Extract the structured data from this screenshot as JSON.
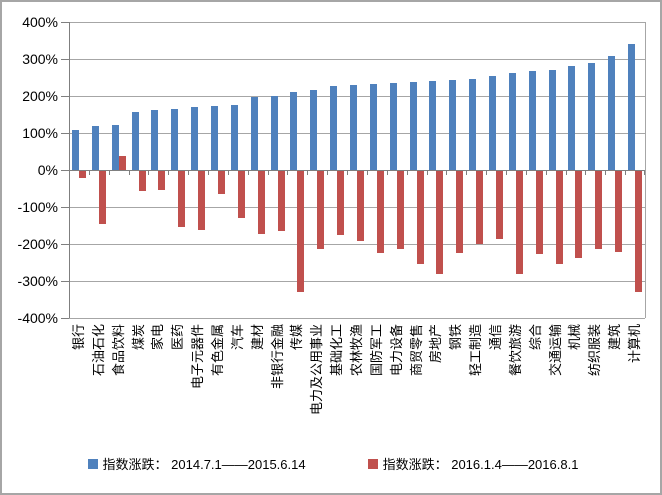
{
  "chart_data": {
    "type": "bar",
    "title": "",
    "categories": [
      "银行",
      "石油石化",
      "食品饮料",
      "煤炭",
      "家电",
      "医药",
      "电子元器件",
      "有色金属",
      "汽车",
      "建材",
      "非银行金融",
      "传媒",
      "电力及公用事业",
      "基础化工",
      "农林牧渔",
      "国防军工",
      "电力设备",
      "商贸零售",
      "房地产",
      "钢铁",
      "轻工制造",
      "通信",
      "餐饮旅游",
      "综合",
      "交通运输",
      "机械",
      "纺织服装",
      "建筑",
      "计算机"
    ],
    "series": [
      {
        "name": "指数涨跌： 2014.7.1——2015.6.14",
        "color": "#4f81bd",
        "values": [
          108,
          118,
          121,
          157,
          161,
          165,
          169,
          172,
          177,
          196,
          199,
          211,
          216,
          227,
          230,
          233,
          236,
          238,
          241,
          243,
          246,
          254,
          261,
          267,
          269,
          281,
          288,
          309,
          341
        ]
      },
      {
        "name": "指数涨跌： 2016.1.4——2016.8.1",
        "color": "#c0504d",
        "values": [
          -18,
          -144,
          38,
          -55,
          -50,
          -152,
          -160,
          -61,
          -128,
          -170,
          -161,
          -327,
          -212,
          -172,
          -188,
          -222,
          -212,
          -250,
          -278,
          -222,
          -198,
          -184,
          -278,
          -224,
          -252,
          -234,
          -210,
          -220,
          -328
        ]
      }
    ],
    "ylim": [
      -400,
      400
    ],
    "y_tick_step": 100,
    "y_tick_labels": [
      "400%",
      "300%",
      "200%",
      "100%",
      "0%",
      "-100%",
      "-200%",
      "-300%",
      "-400%"
    ],
    "unit": "%",
    "grid": true,
    "legend_position": "bottom"
  },
  "colors": {
    "bar_up_period": "#4f81bd",
    "bar_down_period": "#c0504d",
    "gridline": "#a6a6a6",
    "axis": "#7f7f7f",
    "border": "#a6a6a6",
    "background": "#ffffff",
    "text": "#000000"
  }
}
